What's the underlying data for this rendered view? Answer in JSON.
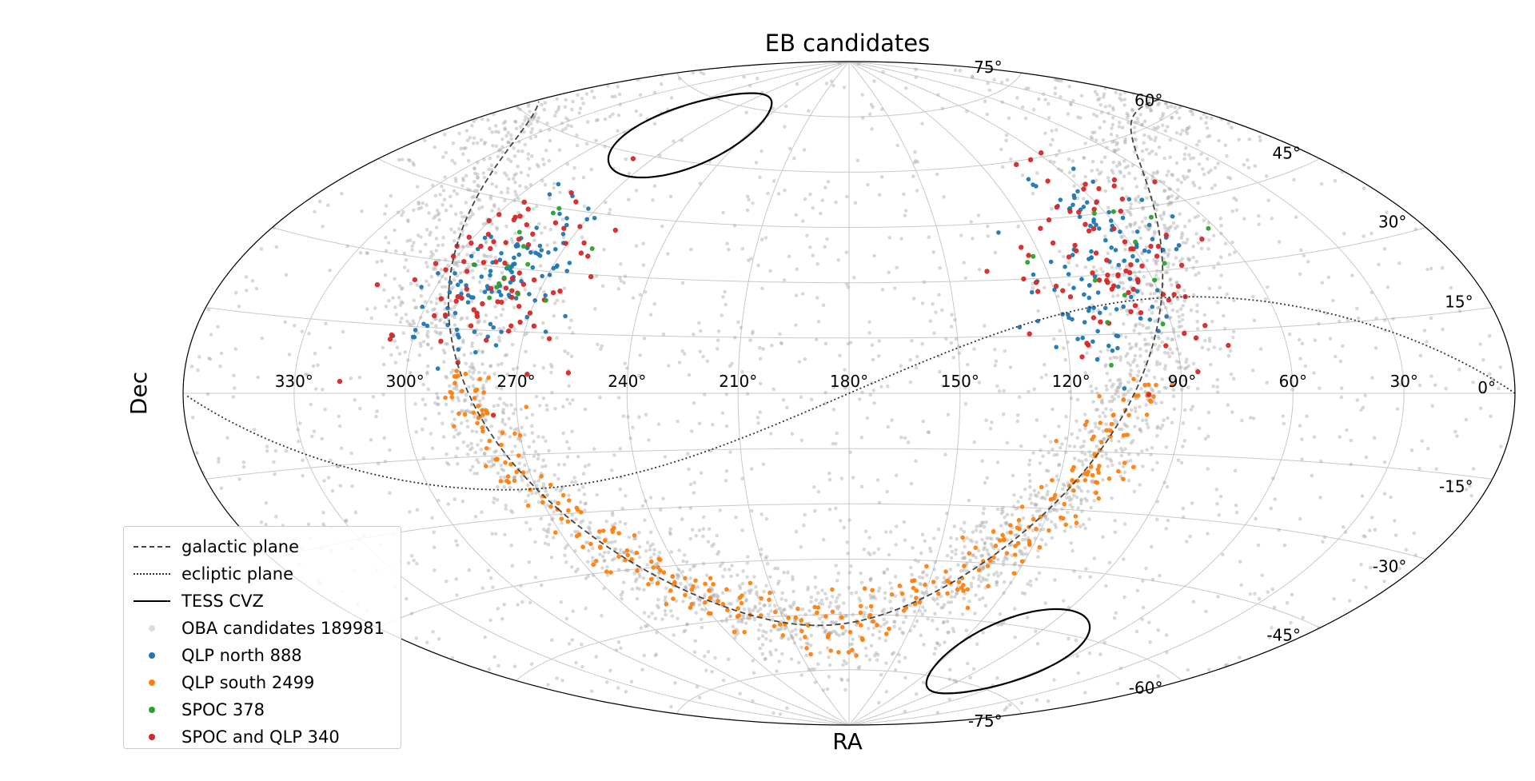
{
  "chart_data": {
    "type": "scatter",
    "projection": "aitoff (sky map)",
    "title": "EB candidates",
    "xlabel": "RA",
    "ylabel": "Dec",
    "ra_tick_labels": [
      "30°",
      "60°",
      "90°",
      "120°",
      "150°",
      "180°",
      "210°",
      "240°",
      "270°",
      "300°",
      "330°"
    ],
    "dec_tick_labels": [
      "75°",
      "60°",
      "45°",
      "30°",
      "15°",
      "0°",
      "-15°",
      "-30°",
      "-45°",
      "-60°",
      "-75°"
    ],
    "grid": true,
    "legend_position": "lower-left",
    "colors": {
      "galactic": "#444444",
      "ecliptic": "#333333",
      "cvz": "#000000",
      "oba": "#a9a9a9",
      "qlp_north": "#1f77b4",
      "qlp_south": "#ff7f0e",
      "spoc": "#2ca02c",
      "spoc_qlp": "#d62728"
    },
    "series": [
      {
        "name": "galactic plane",
        "style": "dashed line"
      },
      {
        "name": "ecliptic plane",
        "style": "dotted line"
      },
      {
        "name": "TESS CVZ",
        "style": "solid line"
      },
      {
        "name": "OBA candidates 189981",
        "style": "points",
        "count": 189981
      },
      {
        "name": "QLP north 888",
        "style": "points",
        "count": 888
      },
      {
        "name": "QLP south 2499",
        "style": "points",
        "count": 2499
      },
      {
        "name": "SPOC 378",
        "style": "points",
        "count": 378
      },
      {
        "name": "SPOC and QLP 340",
        "style": "points",
        "count": 340
      }
    ]
  }
}
